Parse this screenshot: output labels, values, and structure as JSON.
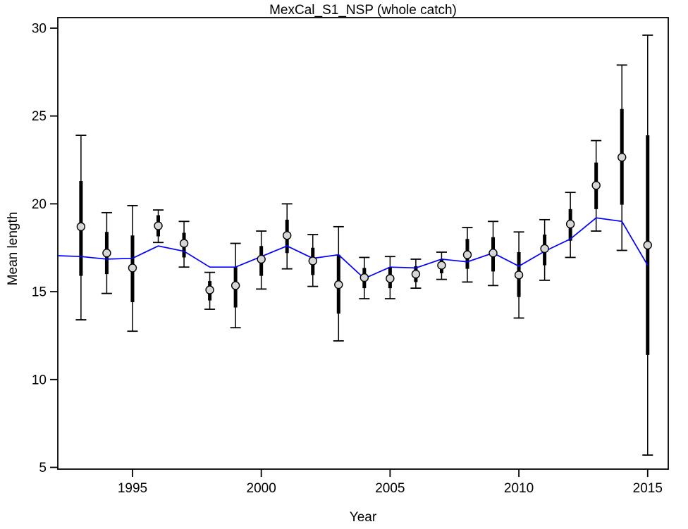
{
  "page": {
    "background": "#FFFFFF"
  },
  "chart_data": {
    "type": "scatter",
    "subtype": "mean-length-fit-with-error-bars-and-expected-line",
    "title": "MexCal_S1_NSP (whole catch)",
    "xlabel": "Year",
    "ylabel": "Mean length",
    "xlim": [
      1992.1,
      2015.8
    ],
    "ylim": [
      4.9,
      30.6
    ],
    "x_ticks": [
      1995,
      2000,
      2005,
      2010,
      2015
    ],
    "y_ticks": [
      5,
      10,
      15,
      20,
      25,
      30
    ],
    "grid": false,
    "legend_position": "none",
    "years": [
      1993,
      1994,
      1995,
      1996,
      1997,
      1998,
      1999,
      2000,
      2001,
      2002,
      2003,
      2004,
      2005,
      2006,
      2007,
      2008,
      2009,
      2010,
      2011,
      2012,
      2013,
      2014,
      2015
    ],
    "observed_mean_length": [
      18.7,
      17.2,
      16.35,
      18.75,
      17.75,
      15.1,
      15.35,
      16.85,
      18.2,
      16.75,
      15.4,
      15.8,
      15.75,
      16.0,
      16.5,
      17.1,
      17.2,
      15.95,
      17.45,
      18.85,
      21.05,
      22.65,
      17.65
    ],
    "expected_line": {
      "x": [
        1992.1,
        1993,
        1994,
        1995,
        1996,
        1997,
        1998,
        1999,
        2000,
        2001,
        2002,
        2003,
        2004,
        2005,
        2006,
        2007,
        2008,
        2009,
        2010,
        2011,
        2012,
        2013,
        2014,
        2015
      ],
      "y": [
        17.05,
        17.0,
        16.85,
        16.9,
        17.6,
        17.3,
        16.4,
        16.4,
        17.0,
        17.6,
        16.9,
        17.1,
        15.75,
        16.4,
        16.35,
        16.85,
        16.7,
        17.2,
        16.45,
        17.3,
        18.0,
        19.2,
        19.0,
        16.5
      ]
    },
    "interval_outer_thin": {
      "hi": [
        23.9,
        19.5,
        19.9,
        19.65,
        19.0,
        16.1,
        17.75,
        18.45,
        20.0,
        18.25,
        18.7,
        16.95,
        17.0,
        16.85,
        17.25,
        18.65,
        19.0,
        18.4,
        19.1,
        20.65,
        23.6,
        27.9,
        29.6
      ],
      "lo": [
        13.4,
        14.9,
        12.75,
        17.8,
        16.4,
        14.0,
        12.95,
        15.15,
        16.3,
        15.3,
        12.2,
        14.6,
        14.6,
        15.2,
        15.7,
        15.55,
        15.35,
        13.5,
        15.65,
        16.95,
        18.45,
        17.35,
        5.7
      ]
    },
    "interval_inner_thick": {
      "hi": [
        21.3,
        18.4,
        18.2,
        19.35,
        18.35,
        15.6,
        16.4,
        17.6,
        19.1,
        17.5,
        17.1,
        16.35,
        16.4,
        16.45,
        16.85,
        18.0,
        18.1,
        17.25,
        18.25,
        19.7,
        22.35,
        25.4,
        23.9
      ],
      "lo": [
        15.9,
        16.0,
        14.4,
        18.15,
        16.95,
        14.5,
        14.1,
        15.9,
        17.2,
        15.95,
        13.75,
        15.2,
        15.2,
        15.55,
        16.05,
        16.3,
        16.15,
        14.7,
        16.5,
        17.9,
        19.7,
        19.95,
        11.4
      ]
    },
    "colors": {
      "expected_line": "#0000FF",
      "point_fill": "#D6D6D6",
      "point_stroke": "#000000",
      "error_bars": "#000000",
      "axis": "#000000"
    }
  }
}
